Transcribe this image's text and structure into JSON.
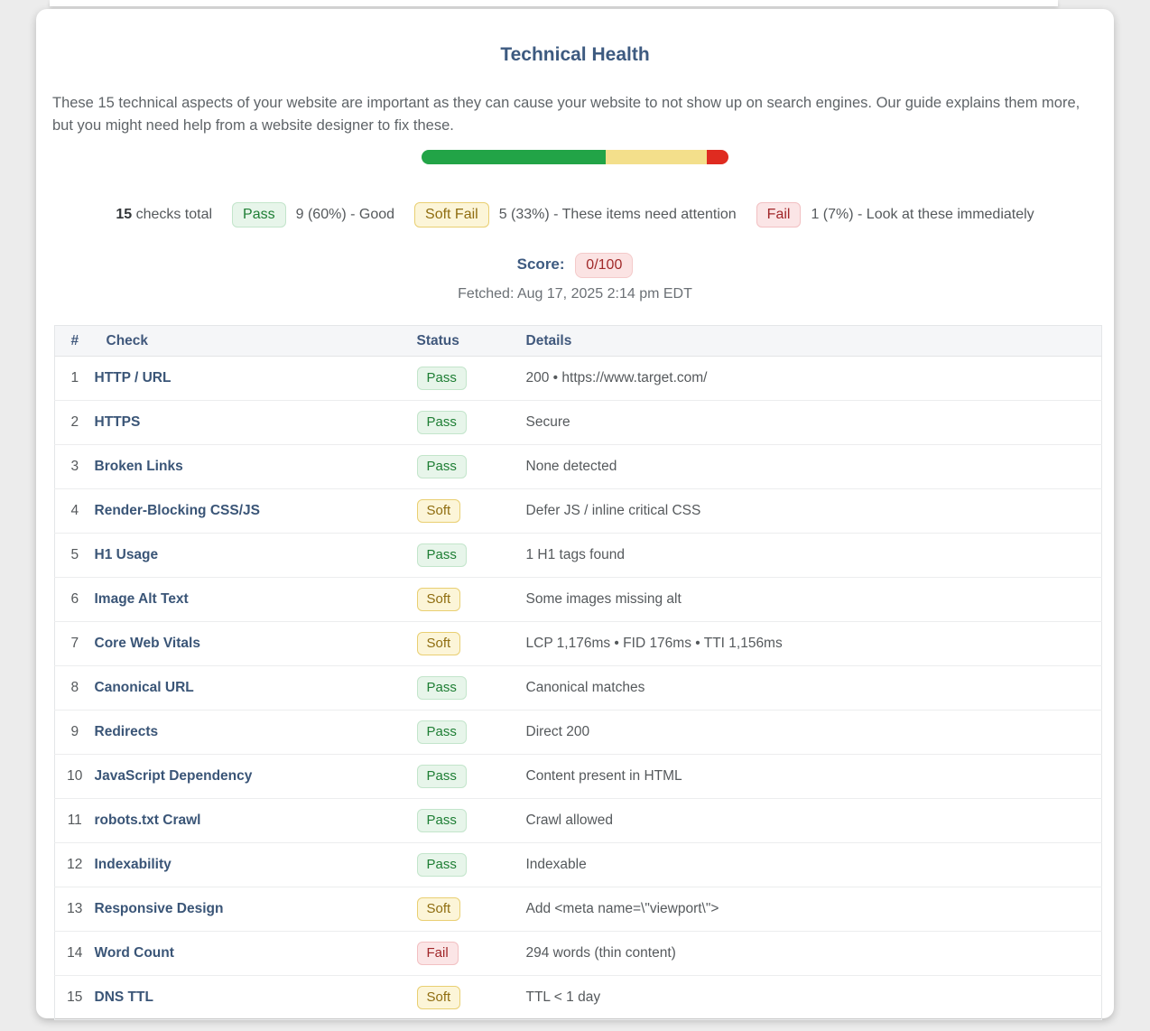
{
  "header": {
    "title": "Technical Health",
    "description": "These 15 technical aspects of your website are important as they can cause your website to not show up on search engines. Our guide explains them more, but you might need help from a website designer to fix these."
  },
  "progress": {
    "segments": [
      {
        "name": "pass",
        "percent": 60,
        "color": "#22a447"
      },
      {
        "name": "soft",
        "percent": 33,
        "color": "#f3df8b"
      },
      {
        "name": "fail",
        "percent": 7,
        "color": "#df2b20"
      }
    ]
  },
  "summary": {
    "total_count": "15",
    "total_label": "checks total",
    "items": [
      {
        "badge": "Pass",
        "text": "9 (60%) - Good",
        "variant": "pass"
      },
      {
        "badge": "Soft Fail",
        "text": "5 (33%) - These items need attention",
        "variant": "soft"
      },
      {
        "badge": "Fail",
        "text": "1 (7%) - Look at these immediately",
        "variant": "fail"
      }
    ]
  },
  "score": {
    "label": "Score:",
    "value": "0/100"
  },
  "fetched": "Fetched: Aug 17, 2025 2:14 pm EDT",
  "colors": {
    "accent_blue": "#3d5a80",
    "pass_green": "#1e7e34",
    "soft_yellow": "#8f6d10",
    "fail_red": "#a02629",
    "page_background": "#ececec"
  },
  "table": {
    "columns": [
      "#",
      "Check",
      "Status",
      "Details"
    ],
    "rows": [
      {
        "num": "1",
        "check": "HTTP / URL",
        "status": "Pass",
        "variant": "pass",
        "details": "200 • https://www.target.com/"
      },
      {
        "num": "2",
        "check": "HTTPS",
        "status": "Pass",
        "variant": "pass",
        "details": "Secure"
      },
      {
        "num": "3",
        "check": "Broken Links",
        "status": "Pass",
        "variant": "pass",
        "details": "None detected"
      },
      {
        "num": "4",
        "check": "Render-Blocking CSS/JS",
        "status": "Soft",
        "variant": "soft",
        "details": "Defer JS / inline critical CSS"
      },
      {
        "num": "5",
        "check": "H1 Usage",
        "status": "Pass",
        "variant": "pass",
        "details": "1 H1 tags found"
      },
      {
        "num": "6",
        "check": "Image Alt Text",
        "status": "Soft",
        "variant": "soft",
        "details": "Some images missing alt"
      },
      {
        "num": "7",
        "check": "Core Web Vitals",
        "status": "Soft",
        "variant": "soft",
        "details": "LCP 1,176ms • FID 176ms • TTI 1,156ms"
      },
      {
        "num": "8",
        "check": "Canonical URL",
        "status": "Pass",
        "variant": "pass",
        "details": "Canonical matches"
      },
      {
        "num": "9",
        "check": "Redirects",
        "status": "Pass",
        "variant": "pass",
        "details": "Direct 200"
      },
      {
        "num": "10",
        "check": "JavaScript Dependency",
        "status": "Pass",
        "variant": "pass",
        "details": "Content present in HTML"
      },
      {
        "num": "11",
        "check": "robots.txt Crawl",
        "status": "Pass",
        "variant": "pass",
        "details": "Crawl allowed"
      },
      {
        "num": "12",
        "check": "Indexability",
        "status": "Pass",
        "variant": "pass",
        "details": "Indexable"
      },
      {
        "num": "13",
        "check": "Responsive Design",
        "status": "Soft",
        "variant": "soft",
        "details": "Add <meta name=\\\"viewport\\\">"
      },
      {
        "num": "14",
        "check": "Word Count",
        "status": "Fail",
        "variant": "fail",
        "details": "294 words (thin content)"
      },
      {
        "num": "15",
        "check": "DNS TTL",
        "status": "Soft",
        "variant": "soft",
        "details": "TTL < 1 day"
      }
    ]
  }
}
